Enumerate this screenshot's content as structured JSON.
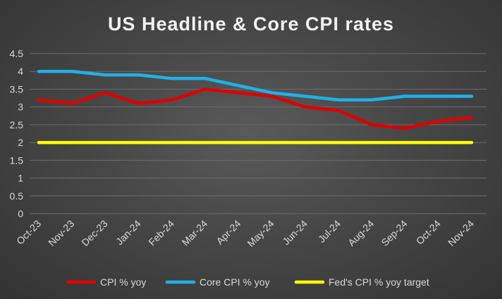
{
  "chart_data": {
    "type": "line",
    "title": "US Headline & Core CPI rates",
    "xlabel": "",
    "ylabel": "",
    "categories": [
      "Oct-23",
      "Nov-23",
      "Dec-23",
      "Jan-24",
      "Feb-24",
      "Mar-24",
      "Apr-24",
      "May-24",
      "Jun-24",
      "Jul-24",
      "Aug-24",
      "Sep-24",
      "Oct-24",
      "Nov-24"
    ],
    "ylim": [
      0,
      4.5
    ],
    "yticks": [
      "0",
      "0.5",
      "1",
      "1.5",
      "2",
      "2.5",
      "3",
      "3.5",
      "4",
      "4.5"
    ],
    "grid": true,
    "legend_position": "bottom",
    "series": [
      {
        "name": "CPI % yoy",
        "color": "#e00000",
        "values": [
          3.2,
          3.1,
          3.4,
          3.1,
          3.2,
          3.5,
          3.4,
          3.3,
          3.0,
          2.9,
          2.5,
          2.4,
          2.6,
          2.7
        ]
      },
      {
        "name": "Core CPI % yoy",
        "color": "#1fb0e8",
        "values": [
          4.0,
          4.0,
          3.9,
          3.9,
          3.8,
          3.8,
          3.6,
          3.4,
          3.3,
          3.2,
          3.2,
          3.3,
          3.3,
          3.3
        ]
      },
      {
        "name": "Fed's CPI % yoy target",
        "color": "#ffff00",
        "values": [
          2.0,
          2.0,
          2.0,
          2.0,
          2.0,
          2.0,
          2.0,
          2.0,
          2.0,
          2.0,
          2.0,
          2.0,
          2.0,
          2.0
        ]
      }
    ]
  }
}
